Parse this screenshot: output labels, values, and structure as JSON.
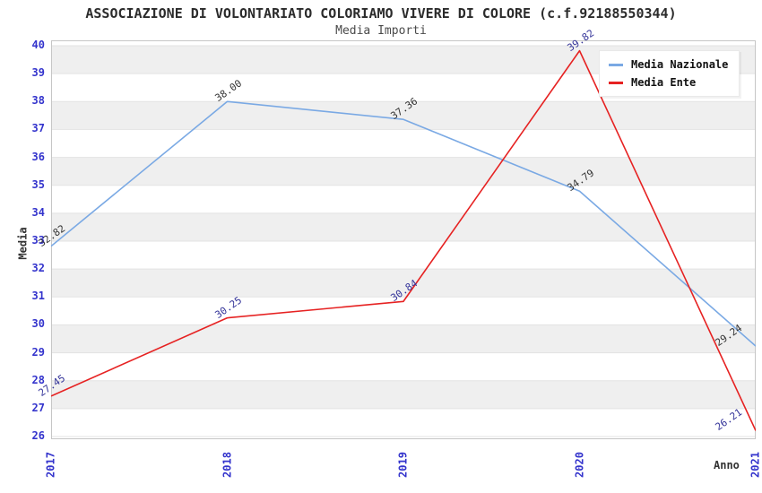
{
  "chart_data": {
    "type": "line",
    "title": "ASSOCIAZIONE DI VOLONTARIATO COLORIAMO VIVERE DI COLORE (c.f.92188550344)",
    "subtitle": "Media Importi",
    "xlabel": "Anno",
    "ylabel": "Media",
    "categories": [
      "2017",
      "2018",
      "2019",
      "2020",
      "2021"
    ],
    "series": [
      {
        "name": "Media Nazionale",
        "color": "#7aa9e4",
        "label_color": "#333333",
        "values": [
          32.82,
          38.0,
          37.36,
          34.79,
          29.24
        ]
      },
      {
        "name": "Media Ente",
        "color": "#e62222",
        "label_color": "#333399",
        "values": [
          27.45,
          30.25,
          30.84,
          39.82,
          26.21
        ]
      }
    ],
    "ylim": [
      26,
      40
    ],
    "ytick_step": 1,
    "grid": "horizontal-bands",
    "band_color": "#efefef",
    "gridline_color": "#e3e3e3",
    "plot_border_color": "#c6c6c6",
    "tick_label_color": "#3333cc",
    "legend_position": "top-right",
    "value_label_format": "2-decimals"
  }
}
